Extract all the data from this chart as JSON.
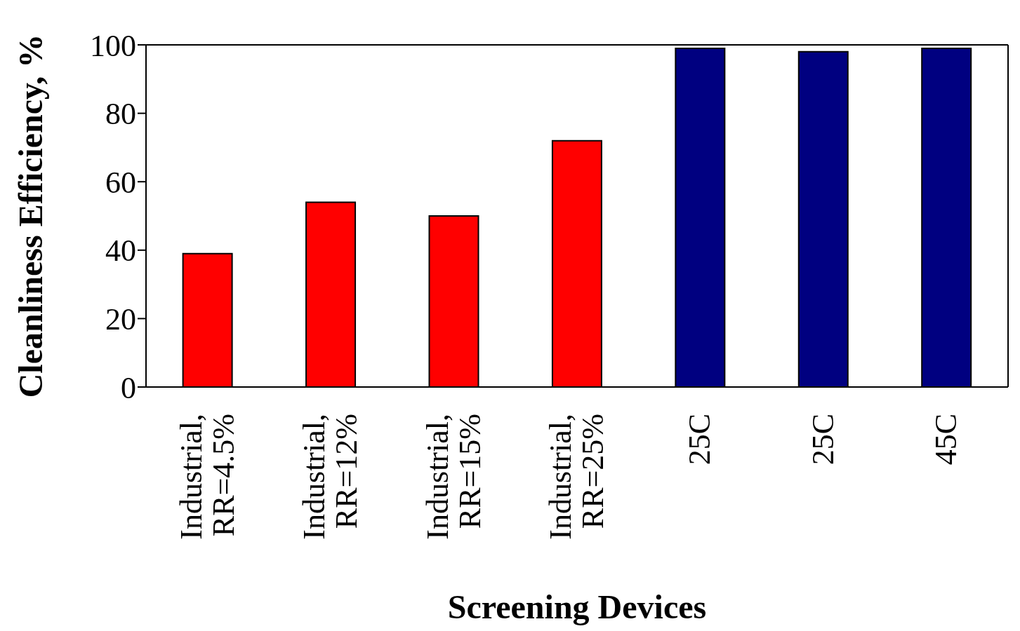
{
  "chart_data": {
    "type": "bar",
    "xlabel": "Screening Devices",
    "ylabel": "Cleanliness Efficiency, %",
    "categories": [
      "Industrial, RR=4.5%",
      "Industrial, RR=12%",
      "Industrial, RR=15%",
      "Industrial, RR=25%",
      "25C",
      "25C",
      "45C"
    ],
    "values": [
      39,
      54,
      50,
      72,
      99,
      98,
      99
    ],
    "colors": [
      "#ff0000",
      "#ff0000",
      "#ff0000",
      "#ff0000",
      "#000080",
      "#000080",
      "#000080"
    ],
    "ylim": [
      0,
      100
    ],
    "yticks": [
      0,
      20,
      40,
      60,
      80,
      100
    ],
    "grid": false,
    "legend": false
  }
}
